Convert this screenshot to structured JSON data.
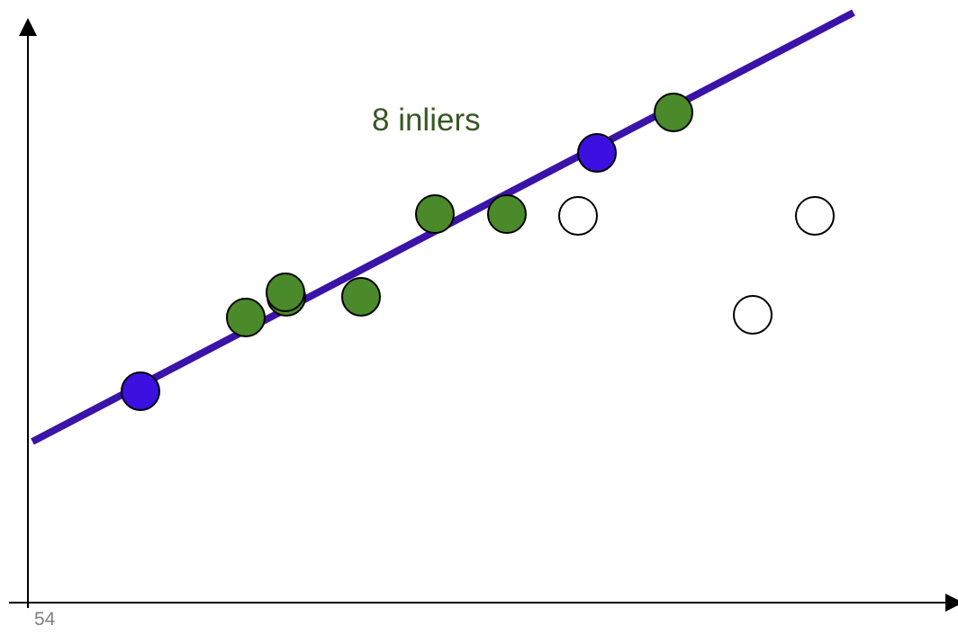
{
  "annotation": {
    "inlier_count_label": "8 inliers"
  },
  "slide": {
    "page_number": "54"
  },
  "colors": {
    "fit_line": "#3a13a8",
    "sample_point": "#3b10e0",
    "inlier_point": "#4a8a2a",
    "outlier_point": "#ffffff",
    "point_stroke": "#000000",
    "axis": "#000000",
    "label_text": "#375623",
    "page_number_text": "#7f7f7f"
  },
  "legend_semantics": {
    "point_kinds": [
      "sample",
      "inlier",
      "outlier"
    ],
    "sample_count": 2,
    "inlier_count": 8,
    "outlier_count": 3
  }
}
